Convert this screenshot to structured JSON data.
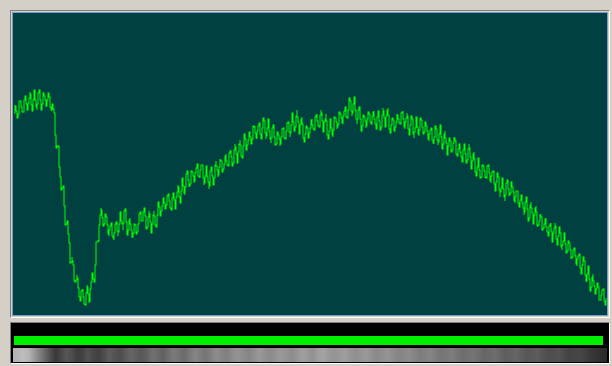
{
  "colors": {
    "plot_background": "#004040",
    "trace": "#00ff00",
    "level_bar": "#00f000",
    "panel": "#d4d0c8"
  },
  "scope": {
    "trace_samples": [
      0.67,
      0.685,
      0.7,
      0.705,
      0.715,
      0.715,
      0.715,
      0.715,
      0.7,
      0.56,
      0.42,
      0.3,
      0.17,
      0.11,
      0.06,
      0.05,
      0.08,
      0.16,
      0.33,
      0.31,
      0.28,
      0.27,
      0.3,
      0.32,
      0.29,
      0.27,
      0.3,
      0.34,
      0.31,
      0.3,
      0.33,
      0.36,
      0.38,
      0.37,
      0.39,
      0.41,
      0.44,
      0.45,
      0.47,
      0.48,
      0.46,
      0.45,
      0.47,
      0.49,
      0.5,
      0.52,
      0.53,
      0.54,
      0.56,
      0.58,
      0.6,
      0.61,
      0.62,
      0.62,
      0.6,
      0.58,
      0.59,
      0.61,
      0.63,
      0.65,
      0.63,
      0.6,
      0.62,
      0.64,
      0.65,
      0.64,
      0.61,
      0.63,
      0.65,
      0.66,
      0.68,
      0.7,
      0.66,
      0.64,
      0.65,
      0.66,
      0.64,
      0.65,
      0.66,
      0.63,
      0.64,
      0.66,
      0.64,
      0.63,
      0.62,
      0.63,
      0.62,
      0.6,
      0.59,
      0.6,
      0.58,
      0.56,
      0.57,
      0.55,
      0.53,
      0.54,
      0.51,
      0.49,
      0.47,
      0.48,
      0.46,
      0.44,
      0.42,
      0.41,
      0.42,
      0.39,
      0.38,
      0.36,
      0.34,
      0.33,
      0.31,
      0.3,
      0.28,
      0.27,
      0.26,
      0.24,
      0.22,
      0.2,
      0.18,
      0.16,
      0.13,
      0.1,
      0.08,
      0.06,
      0.05
    ],
    "ripple_amplitude": 0.035,
    "ripple_period": 8
  },
  "level_meter": {
    "fraction": 0.995
  },
  "spectrum_strip": {
    "intensities": [
      0.7,
      0.72,
      0.74,
      0.7,
      0.6,
      0.5,
      0.4,
      0.3,
      0.22,
      0.28,
      0.34,
      0.3,
      0.24,
      0.26,
      0.32,
      0.28,
      0.25,
      0.3,
      0.36,
      0.33,
      0.3,
      0.35,
      0.4,
      0.37,
      0.34,
      0.38,
      0.44,
      0.42,
      0.38,
      0.43,
      0.48,
      0.45,
      0.42,
      0.47,
      0.52,
      0.49,
      0.46,
      0.5,
      0.55,
      0.52,
      0.5,
      0.55,
      0.58,
      0.55,
      0.52,
      0.56,
      0.6,
      0.57,
      0.54,
      0.57,
      0.6,
      0.58,
      0.55,
      0.58,
      0.62,
      0.6,
      0.57,
      0.62,
      0.64,
      0.6,
      0.58,
      0.6,
      0.62,
      0.59,
      0.56,
      0.58,
      0.6,
      0.57,
      0.54,
      0.56,
      0.58,
      0.55,
      0.52,
      0.53,
      0.55,
      0.52,
      0.49,
      0.5,
      0.52,
      0.49,
      0.46,
      0.47,
      0.49,
      0.46,
      0.43,
      0.44,
      0.46,
      0.43,
      0.4,
      0.41,
      0.43,
      0.4,
      0.37,
      0.38,
      0.4,
      0.37,
      0.34,
      0.35,
      0.36,
      0.33,
      0.3,
      0.31,
      0.32,
      0.29,
      0.26,
      0.27,
      0.28,
      0.25,
      0.22,
      0.2,
      0.18,
      0.16
    ]
  }
}
